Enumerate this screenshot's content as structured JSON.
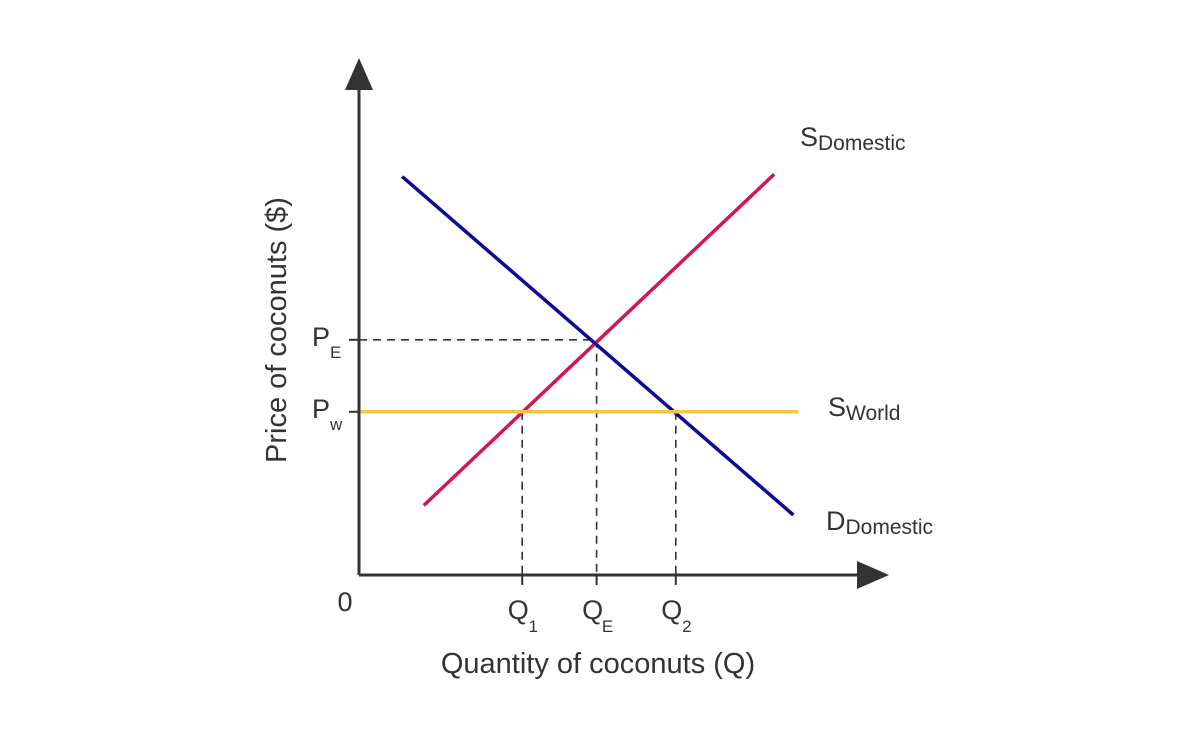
{
  "chart_data": {
    "type": "line",
    "title": "",
    "xlabel": "Quantity of coconuts (Q)",
    "ylabel": "Price of coconuts ($)",
    "origin_label": "0",
    "xlim": [
      0,
      10
    ],
    "ylim": [
      0,
      10
    ],
    "grid": false,
    "x_ticks": [
      {
        "id": "q1",
        "main": "Q",
        "sub": "1",
        "value": 3.4
      },
      {
        "id": "qe",
        "main": "Q",
        "sub": "E",
        "value": 4.95
      },
      {
        "id": "q2",
        "main": "Q",
        "sub": "2",
        "value": 6.6
      }
    ],
    "y_ticks": [
      {
        "id": "pe",
        "main": "P",
        "sub": "E",
        "value": 4.9
      },
      {
        "id": "pw",
        "main": "P",
        "sub": "w",
        "value": 3.4
      }
    ],
    "series": [
      {
        "id": "s-domestic",
        "label_main": "S",
        "label_sub": "Domestic",
        "color": "#d4145a",
        "points": [
          [
            1.35,
            1.45
          ],
          [
            8.65,
            8.35
          ]
        ]
      },
      {
        "id": "d-domestic",
        "label_main": "D",
        "label_sub": "Domestic",
        "color": "#0a0a96",
        "points": [
          [
            0.9,
            8.3
          ],
          [
            9.05,
            1.25
          ]
        ]
      },
      {
        "id": "s-world",
        "label_main": "S",
        "label_sub": "World",
        "color": "#f5c542",
        "points": [
          [
            0,
            3.4
          ],
          [
            9.15,
            3.4
          ]
        ]
      }
    ]
  }
}
